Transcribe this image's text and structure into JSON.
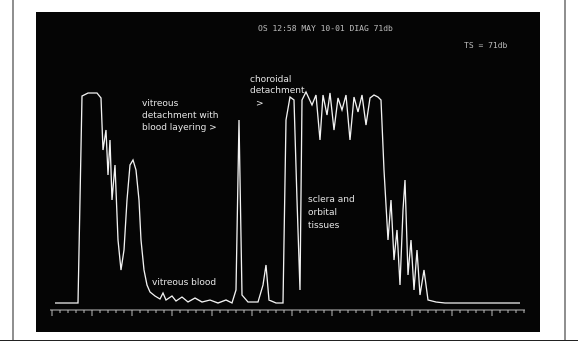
{
  "header": {
    "line1": "OS 12:58 MAY 10-01 DIAG 71db",
    "line2": "TS = 71db"
  },
  "annotations": {
    "vitreous_detachment": [
      "vitreous",
      "detachment with",
      "blood layering >"
    ],
    "choroidal_detachment": [
      "choroidal",
      "detachment",
      ">"
    ],
    "vitreous_blood": "vitreous blood",
    "sclera": [
      "sclera and",
      "orbital",
      "tissues"
    ]
  }
}
